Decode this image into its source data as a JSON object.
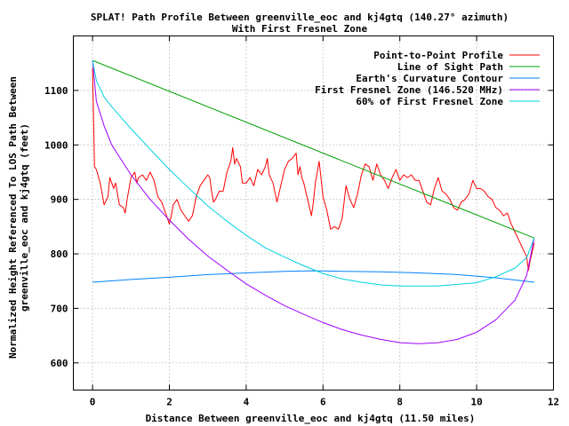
{
  "chart_data": {
    "type": "line",
    "title": "SPLAT! Path Profile Between greenville_eoc and kj4gtq (140.27° azimuth)",
    "subtitle": "With First Fresnel Zone",
    "xlabel": "Distance Between greenville_eoc and kj4gtq (11.50 miles)",
    "ylabel": "Normalized Height Referenced To LOS Path Between greenville_eoc and kj4gtq (feet)",
    "xlim": [
      -0.5,
      12
    ],
    "ylim": [
      550,
      1200
    ],
    "x_ticks": [
      "0",
      "2",
      "4",
      "6",
      "8",
      "10",
      "12"
    ],
    "y_ticks": [
      "600",
      "700",
      "800",
      "900",
      "1000",
      "1100"
    ],
    "grid": true,
    "legend_position": "top-right",
    "series": [
      {
        "name": "Point-to-Point Profile",
        "color": "#ff0000",
        "points": [
          [
            0,
            1140
          ],
          [
            0.05,
            960
          ],
          [
            0.1,
            955
          ],
          [
            0.2,
            930
          ],
          [
            0.25,
            910
          ],
          [
            0.3,
            890
          ],
          [
            0.4,
            905
          ],
          [
            0.45,
            940
          ],
          [
            0.55,
            920
          ],
          [
            0.6,
            930
          ],
          [
            0.7,
            890
          ],
          [
            0.8,
            885
          ],
          [
            0.85,
            875
          ],
          [
            0.9,
            900
          ],
          [
            1.0,
            940
          ],
          [
            1.1,
            950
          ],
          [
            1.15,
            930
          ],
          [
            1.2,
            940
          ],
          [
            1.3,
            945
          ],
          [
            1.4,
            935
          ],
          [
            1.5,
            950
          ],
          [
            1.6,
            935
          ],
          [
            1.7,
            905
          ],
          [
            1.8,
            895
          ],
          [
            1.85,
            885
          ],
          [
            1.9,
            875
          ],
          [
            2.0,
            855
          ],
          [
            2.05,
            870
          ],
          [
            2.1,
            890
          ],
          [
            2.2,
            900
          ],
          [
            2.3,
            880
          ],
          [
            2.4,
            870
          ],
          [
            2.5,
            860
          ],
          [
            2.6,
            870
          ],
          [
            2.7,
            905
          ],
          [
            2.8,
            925
          ],
          [
            2.9,
            935
          ],
          [
            3.0,
            945
          ],
          [
            3.05,
            940
          ],
          [
            3.1,
            915
          ],
          [
            3.15,
            895
          ],
          [
            3.2,
            900
          ],
          [
            3.3,
            915
          ],
          [
            3.4,
            915
          ],
          [
            3.5,
            950
          ],
          [
            3.6,
            970
          ],
          [
            3.65,
            995
          ],
          [
            3.7,
            965
          ],
          [
            3.75,
            975
          ],
          [
            3.85,
            960
          ],
          [
            3.9,
            930
          ],
          [
            4.0,
            930
          ],
          [
            4.1,
            940
          ],
          [
            4.2,
            925
          ],
          [
            4.3,
            955
          ],
          [
            4.4,
            945
          ],
          [
            4.5,
            960
          ],
          [
            4.55,
            975
          ],
          [
            4.6,
            945
          ],
          [
            4.7,
            930
          ],
          [
            4.8,
            895
          ],
          [
            4.9,
            925
          ],
          [
            5.0,
            955
          ],
          [
            5.1,
            970
          ],
          [
            5.2,
            975
          ],
          [
            5.3,
            985
          ],
          [
            5.35,
            945
          ],
          [
            5.4,
            960
          ],
          [
            5.45,
            940
          ],
          [
            5.5,
            930
          ],
          [
            5.6,
            900
          ],
          [
            5.7,
            870
          ],
          [
            5.75,
            895
          ],
          [
            5.8,
            930
          ],
          [
            5.9,
            970
          ],
          [
            6.0,
            905
          ],
          [
            6.1,
            880
          ],
          [
            6.2,
            845
          ],
          [
            6.3,
            850
          ],
          [
            6.4,
            845
          ],
          [
            6.5,
            865
          ],
          [
            6.6,
            925
          ],
          [
            6.7,
            900
          ],
          [
            6.8,
            885
          ],
          [
            6.9,
            910
          ],
          [
            7.0,
            945
          ],
          [
            7.1,
            965
          ],
          [
            7.2,
            960
          ],
          [
            7.3,
            935
          ],
          [
            7.4,
            965
          ],
          [
            7.5,
            945
          ],
          [
            7.6,
            935
          ],
          [
            7.7,
            920
          ],
          [
            7.8,
            940
          ],
          [
            7.9,
            955
          ],
          [
            8.0,
            935
          ],
          [
            8.1,
            945
          ],
          [
            8.2,
            940
          ],
          [
            8.3,
            945
          ],
          [
            8.4,
            935
          ],
          [
            8.5,
            935
          ],
          [
            8.6,
            915
          ],
          [
            8.7,
            895
          ],
          [
            8.8,
            890
          ],
          [
            8.9,
            920
          ],
          [
            9.0,
            940
          ],
          [
            9.1,
            915
          ],
          [
            9.2,
            910
          ],
          [
            9.3,
            900
          ],
          [
            9.4,
            885
          ],
          [
            9.5,
            880
          ],
          [
            9.6,
            895
          ],
          [
            9.7,
            900
          ],
          [
            9.8,
            910
          ],
          [
            9.9,
            935
          ],
          [
            10.0,
            920
          ],
          [
            10.1,
            920
          ],
          [
            10.2,
            915
          ],
          [
            10.3,
            905
          ],
          [
            10.4,
            900
          ],
          [
            10.5,
            885
          ],
          [
            10.6,
            880
          ],
          [
            10.7,
            870
          ],
          [
            10.8,
            875
          ],
          [
            10.9,
            855
          ],
          [
            11.0,
            840
          ],
          [
            11.1,
            825
          ],
          [
            11.2,
            810
          ],
          [
            11.3,
            795
          ],
          [
            11.35,
            770
          ],
          [
            11.4,
            790
          ],
          [
            11.5,
            820
          ]
        ]
      },
      {
        "name": "Line of Sight Path",
        "color": "#00a000",
        "points": [
          [
            0,
            1155
          ],
          [
            11.5,
            829
          ]
        ]
      },
      {
        "name": "Earth's Curvature Contour",
        "color": "#0080ff",
        "points": [
          [
            0,
            748
          ],
          [
            1,
            753
          ],
          [
            2,
            757
          ],
          [
            3,
            762
          ],
          [
            4,
            765
          ],
          [
            5,
            768
          ],
          [
            5.75,
            769
          ],
          [
            6.5,
            768
          ],
          [
            7.5,
            767
          ],
          [
            8.5,
            765
          ],
          [
            9.5,
            762
          ],
          [
            10.5,
            756
          ],
          [
            11.5,
            748
          ]
        ]
      },
      {
        "name": "First Fresnel Zone (146.520 MHz)",
        "color": "#a000ff",
        "points": [
          [
            0,
            1155
          ],
          [
            0.1,
            1080
          ],
          [
            0.3,
            1035
          ],
          [
            0.5,
            1000
          ],
          [
            1,
            945
          ],
          [
            1.5,
            900
          ],
          [
            2,
            862
          ],
          [
            2.5,
            827
          ],
          [
            3,
            796
          ],
          [
            3.5,
            770
          ],
          [
            4,
            745
          ],
          [
            4.5,
            724
          ],
          [
            5,
            705
          ],
          [
            5.5,
            689
          ],
          [
            6,
            674
          ],
          [
            6.5,
            661
          ],
          [
            7,
            651
          ],
          [
            7.5,
            643
          ],
          [
            8,
            637
          ],
          [
            8.5,
            635
          ],
          [
            9,
            637
          ],
          [
            9.5,
            643
          ],
          [
            10,
            656
          ],
          [
            10.5,
            679
          ],
          [
            11,
            715
          ],
          [
            11.3,
            760
          ],
          [
            11.5,
            829
          ]
        ]
      },
      {
        "name": "60% of First Fresnel Zone",
        "color": "#00d0e0",
        "points": [
          [
            0,
            1155
          ],
          [
            0.1,
            1118
          ],
          [
            0.3,
            1088
          ],
          [
            0.5,
            1070
          ],
          [
            1,
            1030
          ],
          [
            1.5,
            992
          ],
          [
            2,
            955
          ],
          [
            2.5,
            921
          ],
          [
            3,
            888
          ],
          [
            3.5,
            860
          ],
          [
            4,
            834
          ],
          [
            4.5,
            811
          ],
          [
            5,
            794
          ],
          [
            5.5,
            778
          ],
          [
            6,
            764
          ],
          [
            6.5,
            754
          ],
          [
            7,
            748
          ],
          [
            7.5,
            743
          ],
          [
            8,
            741
          ],
          [
            8.5,
            741
          ],
          [
            9,
            741
          ],
          [
            9.5,
            744
          ],
          [
            10,
            747
          ],
          [
            10.5,
            758
          ],
          [
            11,
            774
          ],
          [
            11.3,
            793
          ],
          [
            11.5,
            829
          ]
        ]
      }
    ]
  }
}
